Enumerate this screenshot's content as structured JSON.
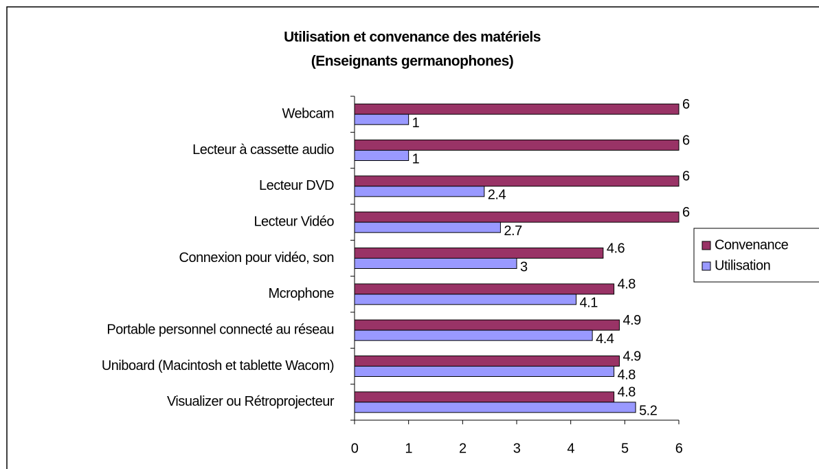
{
  "chart_data": {
    "type": "hbar",
    "title": "Utilisation et convenance des matériels",
    "subtitle": "(Enseignants germanophones)",
    "categories": [
      "Webcam",
      "Lecteur à cassette audio",
      "Lecteur DVD",
      "Lecteur Vidéo",
      "Connexion pour vidéo, son",
      "Mcrophone",
      "Portable personnel connecté au réseau",
      "Uniboard (Macintosh et tablette Wacom)",
      "Visualizer ou Rétroprojecteur"
    ],
    "series": [
      {
        "name": "Convenance",
        "color": "#993366",
        "values": [
          6,
          6,
          6,
          6,
          4.6,
          4.8,
          4.9,
          4.9,
          4.8
        ]
      },
      {
        "name": "Utilisation",
        "color": "#9999ff",
        "values": [
          1,
          1,
          2.4,
          2.7,
          3,
          4.1,
          4.4,
          4.8,
          5.2
        ]
      }
    ],
    "xlim": [
      0,
      6
    ],
    "xticks": [
      0,
      1,
      2,
      3,
      4,
      5,
      6
    ],
    "legend": "right",
    "grid": false
  }
}
